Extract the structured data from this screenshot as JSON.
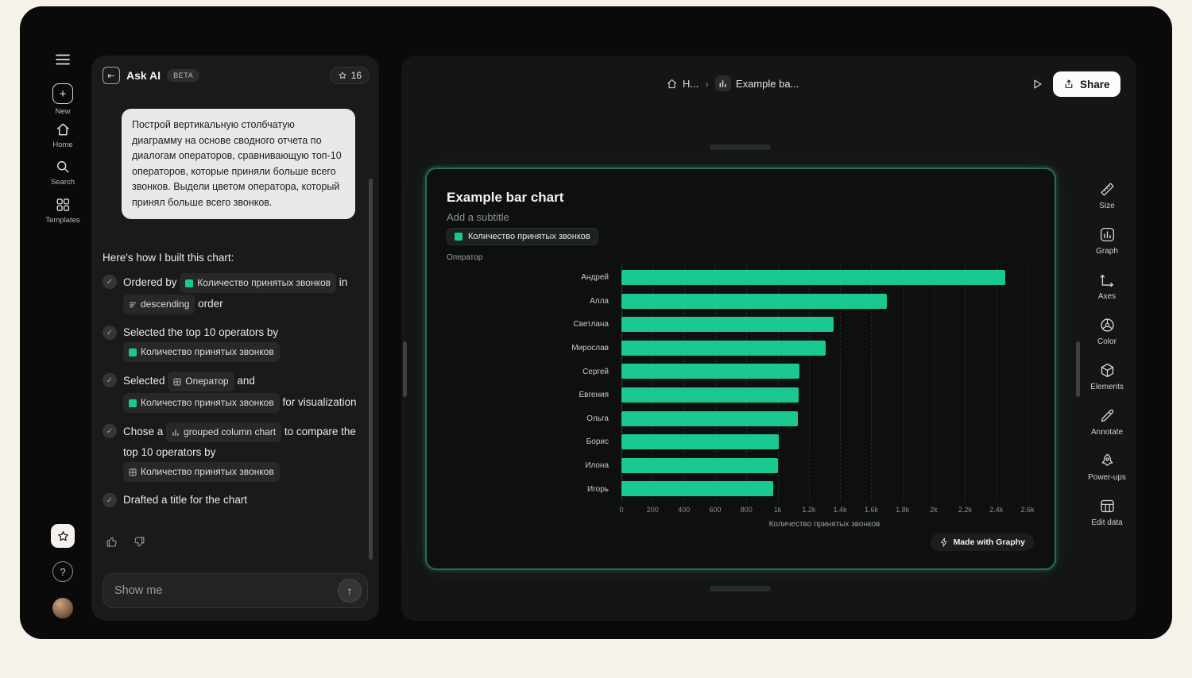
{
  "accent": "#19c991",
  "rail": {
    "new_label": "New",
    "home_label": "Home",
    "search_label": "Search",
    "templates_label": "Templates"
  },
  "ask_ai": {
    "title": "Ask AI",
    "beta": "BETA",
    "credits": "16",
    "prompt": "Построй вертикальную столбчатую диаграмму на основе сводного отчета по диалогам операторов, сравнивающую топ-10 операторов, которые приняли больше всего звонков. Выдели цветом оператора, который принял больше всего звонков.",
    "explain_title": "Here's how I built this chart:",
    "steps": [
      {
        "segments": [
          {
            "t": "text",
            "v": "Ordered by "
          },
          {
            "t": "chip",
            "icon": "metric",
            "v": "Количество принятых звонков"
          },
          {
            "t": "text",
            "v": " in "
          },
          {
            "t": "chip",
            "icon": "sort",
            "v": "descending"
          },
          {
            "t": "text",
            "v": " order"
          }
        ]
      },
      {
        "segments": [
          {
            "t": "text",
            "v": "Selected the top 10 operators by "
          },
          {
            "t": "chip",
            "icon": "metric",
            "v": "Количество принятых звонков"
          }
        ]
      },
      {
        "segments": [
          {
            "t": "text",
            "v": "Selected "
          },
          {
            "t": "chip",
            "icon": "table",
            "v": "Оператор"
          },
          {
            "t": "text",
            "v": " and "
          },
          {
            "t": "chip",
            "icon": "metric",
            "v": "Количество принятых звонков"
          },
          {
            "t": "text",
            "v": " for visualization"
          }
        ]
      },
      {
        "segments": [
          {
            "t": "text",
            "v": "Chose a "
          },
          {
            "t": "chip",
            "icon": "chart",
            "v": "grouped column chart"
          },
          {
            "t": "text",
            "v": " to compare the top 10 operators by "
          },
          {
            "t": "chip",
            "icon": "table",
            "v": "Количество принятых звонков"
          }
        ]
      },
      {
        "segments": [
          {
            "t": "text",
            "v": "Drafted a title for the chart"
          }
        ]
      }
    ],
    "input_placeholder": "Show me"
  },
  "topbar": {
    "breadcrumb_home": "H...",
    "breadcrumb_current": "Example ba...",
    "share_label": "Share"
  },
  "chart_data": {
    "type": "bar",
    "orientation": "horizontal",
    "title": "Example bar chart",
    "subtitle": "Add a subtitle",
    "legend": [
      "Количество принятых звонков"
    ],
    "categories": [
      "Андрей",
      "Алла",
      "Светлана",
      "Мирослав",
      "Сергей",
      "Евгения",
      "Ольга",
      "Борис",
      "Илона",
      "Игорь"
    ],
    "series": [
      {
        "name": "Количество принятых звонков",
        "values": [
          2460,
          1700,
          1360,
          1310,
          1140,
          1135,
          1130,
          1005,
          1000,
          970
        ]
      }
    ],
    "xlabel": "Количество принятых звонков",
    "ylabel": "Оператор",
    "xlim": [
      0,
      2600
    ],
    "x_tick_values": [
      0,
      200,
      400,
      600,
      800,
      1000,
      1200,
      1400,
      1600,
      1800,
      2000,
      2200,
      2400,
      2600
    ],
    "x_tick_labels": [
      "0",
      "200",
      "400",
      "600",
      "800",
      "1k",
      "1.2k",
      "1.4k",
      "1.6k",
      "1.8k",
      "2k",
      "2.2k",
      "2.4k",
      "2.6k"
    ],
    "grid": "vertical-dashed",
    "legend_position": "top-left"
  },
  "toolbar": {
    "items": [
      {
        "label": "Size"
      },
      {
        "label": "Graph"
      },
      {
        "label": "Axes"
      },
      {
        "label": "Color"
      },
      {
        "label": "Elements"
      },
      {
        "label": "Annotate"
      },
      {
        "label": "Power-ups"
      },
      {
        "label": "Edit data"
      }
    ]
  },
  "badge": "Made with Graphy"
}
